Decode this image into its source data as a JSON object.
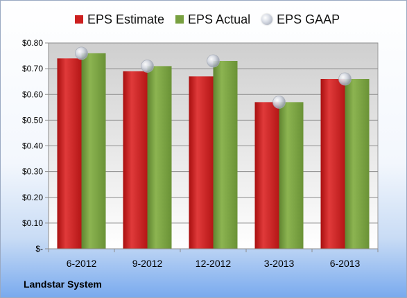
{
  "chart_data": {
    "type": "bar",
    "title": "",
    "xlabel": "",
    "ylabel": "",
    "categories": [
      "6-2012",
      "9-2012",
      "12-2012",
      "3-2013",
      "6-2013"
    ],
    "series": [
      {
        "name": "EPS Estimate",
        "kind": "bar",
        "color": "#cc1f1f",
        "values": [
          0.74,
          0.69,
          0.67,
          0.57,
          0.66
        ]
      },
      {
        "name": "EPS Actual",
        "kind": "bar",
        "color": "#78a040",
        "values": [
          0.76,
          0.71,
          0.73,
          0.57,
          0.66
        ]
      },
      {
        "name": "EPS GAAP",
        "kind": "marker",
        "color": "#c8ccd6",
        "values": [
          0.76,
          0.71,
          0.73,
          0.57,
          0.66
        ]
      }
    ],
    "ylim": [
      0,
      0.8
    ],
    "yticks": [
      {
        "value": 0.0,
        "label": "$-"
      },
      {
        "value": 0.1,
        "label": "$0.10"
      },
      {
        "value": 0.2,
        "label": "$0.20"
      },
      {
        "value": 0.3,
        "label": "$0.30"
      },
      {
        "value": 0.4,
        "label": "$0.40"
      },
      {
        "value": 0.5,
        "label": "$0.50"
      },
      {
        "value": 0.6,
        "label": "$0.60"
      },
      {
        "value": 0.7,
        "label": "$0.70"
      },
      {
        "value": 0.8,
        "label": "$0.80"
      }
    ],
    "grid": true,
    "legend_position": "top"
  },
  "company_label": "Landstar System"
}
